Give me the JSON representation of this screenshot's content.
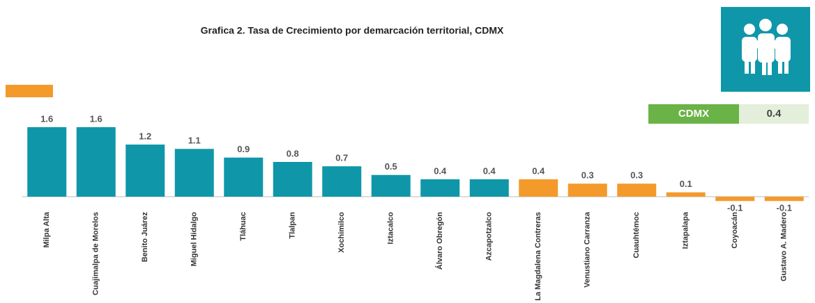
{
  "chart_data": {
    "type": "bar",
    "title": "Grafica 2.  Tasa de Crecimiento por demarcación territorial, CDMX",
    "categories": [
      "Milpa Alta",
      "Cuajimalpa de Morelos",
      "Benito Juárez",
      "Miguel Hidalgo",
      "Tláhuac",
      "Tlalpan",
      "Xochimilco",
      "Iztacalco",
      "Álvaro Obregón",
      "Azcapotzalco",
      "La Magdalena Contreras",
      "Venustiano Carranza",
      "Cuauhtémoc",
      "Iztapalapa",
      "Coyoacán",
      "Gustavo A. Madero"
    ],
    "values": [
      1.6,
      1.6,
      1.2,
      1.1,
      0.9,
      0.8,
      0.7,
      0.5,
      0.4,
      0.4,
      0.4,
      0.3,
      0.3,
      0.1,
      -0.1,
      -0.1
    ],
    "colors": [
      "#0f97a9",
      "#0f97a9",
      "#0f97a9",
      "#0f97a9",
      "#0f97a9",
      "#0f97a9",
      "#0f97a9",
      "#0f97a9",
      "#0f97a9",
      "#0f97a9",
      "#f39a2b",
      "#f39a2b",
      "#f39a2b",
      "#f39a2b",
      "#f39a2b",
      "#f39a2b"
    ],
    "ylim": [
      -0.2,
      1.8
    ],
    "annotation": {
      "label": "CDMX",
      "value": 0.4
    }
  }
}
